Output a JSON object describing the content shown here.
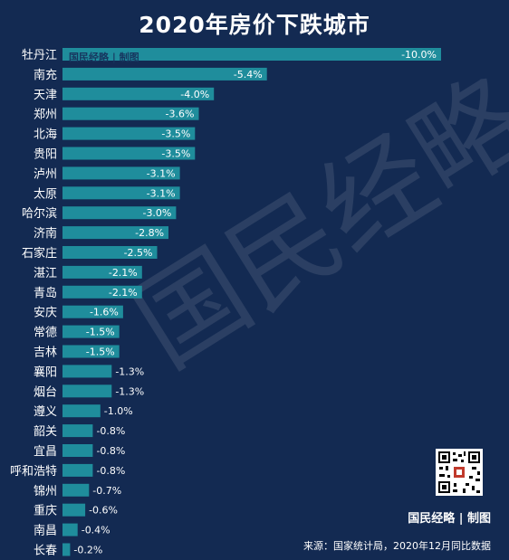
{
  "chart_data": {
    "type": "bar",
    "orientation": "horizontal",
    "title": "2020年房价下跌城市",
    "categories": [
      "牡丹江",
      "南充",
      "天津",
      "郑州",
      "北海",
      "贵阳",
      "泸州",
      "太原",
      "哈尔滨",
      "济南",
      "石家庄",
      "湛江",
      "青岛",
      "安庆",
      "常德",
      "吉林",
      "襄阳",
      "烟台",
      "遵义",
      "韶关",
      "宜昌",
      "呼和浩特",
      "锦州",
      "重庆",
      "南昌",
      "长春"
    ],
    "values": [
      -10.0,
      -5.4,
      -4.0,
      -3.6,
      -3.5,
      -3.5,
      -3.1,
      -3.1,
      -3.0,
      -2.8,
      -2.5,
      -2.1,
      -2.1,
      -1.6,
      -1.5,
      -1.5,
      -1.3,
      -1.3,
      -1.0,
      -0.8,
      -0.8,
      -0.8,
      -0.7,
      -0.6,
      -0.4,
      -0.2
    ],
    "value_labels": [
      "-10.0%",
      "-5.4%",
      "-4.0%",
      "-3.6%",
      "-3.5%",
      "-3.5%",
      "-3.1%",
      "-3.1%",
      "-3.0%",
      "-2.8%",
      "-2.5%",
      "-2.1%",
      "-2.1%",
      "-1.6%",
      "-1.5%",
      "-1.5%",
      "-1.3%",
      "-1.3%",
      "-1.0%",
      "-0.8%",
      "-0.8%",
      "-0.8%",
      "-0.7%",
      "-0.6%",
      "-0.4%",
      "-0.2%"
    ],
    "unit": "%",
    "bar_color": "#1f8d9c",
    "background_color": "#132a52",
    "grid": false
  },
  "branding": {
    "bar_brand": "国民经略 | 制图",
    "watermark": "国民经略",
    "footer_brand": "国民经略 | 制图"
  },
  "source_note": "来源：国家统计局，2020年12月同比数据"
}
